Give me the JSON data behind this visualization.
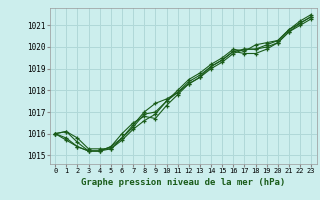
{
  "xlabel": "Graphe pression niveau de la mer (hPa)",
  "bg_color": "#cceeed",
  "grid_color": "#b0d8d8",
  "line_color": "#1a5c1a",
  "xlim": [
    -0.5,
    23.5
  ],
  "ylim": [
    1014.6,
    1021.8
  ],
  "yticks": [
    1015,
    1016,
    1017,
    1018,
    1019,
    1020,
    1021
  ],
  "xticks": [
    0,
    1,
    2,
    3,
    4,
    5,
    6,
    7,
    8,
    9,
    10,
    11,
    12,
    13,
    14,
    15,
    16,
    17,
    18,
    19,
    20,
    21,
    22,
    23
  ],
  "series": [
    [
      1016.0,
      1016.1,
      1015.8,
      1015.3,
      1015.3,
      1015.3,
      1015.8,
      1016.3,
      1016.9,
      1017.0,
      1017.5,
      1018.0,
      1018.5,
      1018.8,
      1019.2,
      1019.5,
      1019.9,
      1019.8,
      1020.1,
      1020.2,
      1020.3,
      1020.8,
      1021.2,
      1021.5
    ],
    [
      1016.0,
      1016.1,
      1015.6,
      1015.2,
      1015.2,
      1015.4,
      1016.0,
      1016.5,
      1016.8,
      1016.7,
      1017.3,
      1017.8,
      1018.3,
      1018.6,
      1019.1,
      1019.4,
      1019.8,
      1019.7,
      1019.7,
      1019.9,
      1020.2,
      1020.7,
      1021.0,
      1021.3
    ],
    [
      1016.0,
      1015.8,
      1015.4,
      1015.2,
      1015.2,
      1015.4,
      1015.8,
      1016.4,
      1017.0,
      1017.4,
      1017.6,
      1017.9,
      1018.3,
      1018.6,
      1019.0,
      1019.3,
      1019.7,
      1019.9,
      1019.9,
      1020.1,
      1020.3,
      1020.8,
      1021.1,
      1021.4
    ],
    [
      1016.0,
      1015.7,
      1015.4,
      1015.2,
      1015.2,
      1015.3,
      1015.7,
      1016.2,
      1016.6,
      1016.9,
      1017.5,
      1017.9,
      1018.4,
      1018.7,
      1019.1,
      1019.4,
      1019.8,
      1019.9,
      1019.9,
      1020.0,
      1020.2,
      1020.7,
      1021.1,
      1021.4
    ]
  ],
  "figsize": [
    3.2,
    2.0
  ],
  "dpi": 100,
  "xlabel_fontsize": 6.5,
  "ytick_fontsize": 5.5,
  "xtick_fontsize": 5.0
}
